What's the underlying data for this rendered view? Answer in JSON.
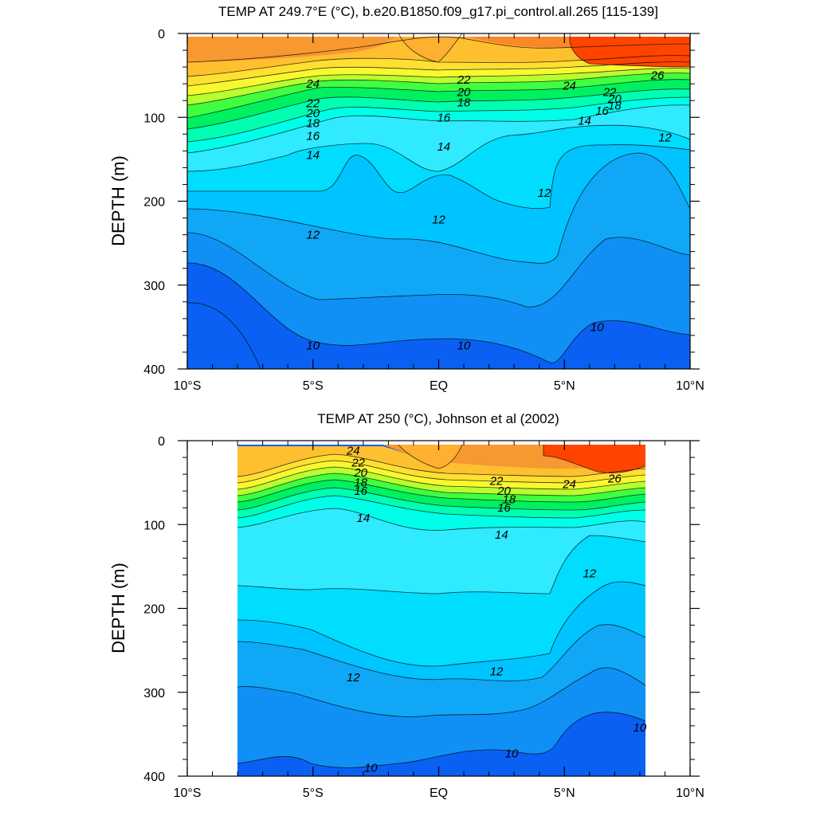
{
  "chart_data": [
    {
      "type": "contour",
      "title": "TEMP AT 249.7°E (°C), b.e20.B1850.f09_g17.pi_control.all.265 [115-139]",
      "ylabel": "DEPTH (m)",
      "xlabel": "",
      "x_ticks": [
        "10°S",
        "5°S",
        "EQ",
        "5°N",
        "10°N"
      ],
      "x_tick_values": [
        -10,
        -5,
        0,
        5,
        10
      ],
      "y_ticks": [
        "0",
        "100",
        "200",
        "300",
        "400"
      ],
      "y_tick_values": [
        0,
        100,
        200,
        300,
        400
      ],
      "xlim": [
        -10,
        10
      ],
      "ylim": [
        400,
        0
      ],
      "data_xlim": [
        -10,
        10
      ],
      "contour_labels": [
        {
          "text": "24",
          "x": -5.0,
          "y": 60
        },
        {
          "text": "22",
          "x": -5.0,
          "y": 83
        },
        {
          "text": "20",
          "x": -5.0,
          "y": 95
        },
        {
          "text": "18",
          "x": -5.0,
          "y": 107
        },
        {
          "text": "16",
          "x": -5.0,
          "y": 122
        },
        {
          "text": "14",
          "x": -5.0,
          "y": 145
        },
        {
          "text": "22",
          "x": 1.0,
          "y": 55
        },
        {
          "text": "20",
          "x": 1.0,
          "y": 70
        },
        {
          "text": "18",
          "x": 1.0,
          "y": 82
        },
        {
          "text": "16",
          "x": 0.2,
          "y": 100
        },
        {
          "text": "14",
          "x": 0.2,
          "y": 135
        },
        {
          "text": "24",
          "x": 5.2,
          "y": 62
        },
        {
          "text": "26",
          "x": 8.7,
          "y": 50
        },
        {
          "text": "22",
          "x": 6.8,
          "y": 70
        },
        {
          "text": "20",
          "x": 7.0,
          "y": 78
        },
        {
          "text": "18",
          "x": 7.0,
          "y": 86
        },
        {
          "text": "16",
          "x": 6.5,
          "y": 92
        },
        {
          "text": "14",
          "x": 5.8,
          "y": 104
        },
        {
          "text": "12",
          "x": 9.0,
          "y": 124
        },
        {
          "text": "12",
          "x": 4.2,
          "y": 190
        },
        {
          "text": "12",
          "x": 0.0,
          "y": 222
        },
        {
          "text": "12",
          "x": -5.0,
          "y": 240
        },
        {
          "text": "10",
          "x": -5.0,
          "y": 372
        },
        {
          "text": "10",
          "x": 1.0,
          "y": 372
        },
        {
          "text": "10",
          "x": 6.3,
          "y": 350
        }
      ]
    },
    {
      "type": "contour",
      "title": "TEMP AT 250 (°C), Johnson et al (2002)",
      "ylabel": "DEPTH (m)",
      "xlabel": "",
      "x_ticks": [
        "10°S",
        "5°S",
        "EQ",
        "5°N",
        "10°N"
      ],
      "x_tick_values": [
        -10,
        -5,
        0,
        5,
        10
      ],
      "y_ticks": [
        "0",
        "100",
        "200",
        "300",
        "400"
      ],
      "y_tick_values": [
        0,
        100,
        200,
        300,
        400
      ],
      "xlim": [
        -10,
        10
      ],
      "ylim": [
        400,
        0
      ],
      "data_xlim": [
        -8,
        8.2
      ],
      "contour_labels": [
        {
          "text": "24",
          "x": -3.4,
          "y": 12
        },
        {
          "text": "22",
          "x": -3.2,
          "y": 26
        },
        {
          "text": "20",
          "x": -3.1,
          "y": 38
        },
        {
          "text": "18",
          "x": -3.1,
          "y": 50
        },
        {
          "text": "16",
          "x": -3.1,
          "y": 60
        },
        {
          "text": "14",
          "x": -3.0,
          "y": 92
        },
        {
          "text": "22",
          "x": 2.3,
          "y": 48
        },
        {
          "text": "20",
          "x": 2.6,
          "y": 60
        },
        {
          "text": "18",
          "x": 2.8,
          "y": 70
        },
        {
          "text": "16",
          "x": 2.6,
          "y": 80
        },
        {
          "text": "14",
          "x": 2.5,
          "y": 112
        },
        {
          "text": "24",
          "x": 5.2,
          "y": 52
        },
        {
          "text": "26",
          "x": 7.0,
          "y": 45
        },
        {
          "text": "12",
          "x": 6.0,
          "y": 158
        },
        {
          "text": "12",
          "x": -3.4,
          "y": 282
        },
        {
          "text": "12",
          "x": 2.3,
          "y": 275
        },
        {
          "text": "10",
          "x": -2.7,
          "y": 390
        },
        {
          "text": "10",
          "x": 2.9,
          "y": 373
        },
        {
          "text": "10",
          "x": 8.0,
          "y": 342
        }
      ]
    }
  ]
}
